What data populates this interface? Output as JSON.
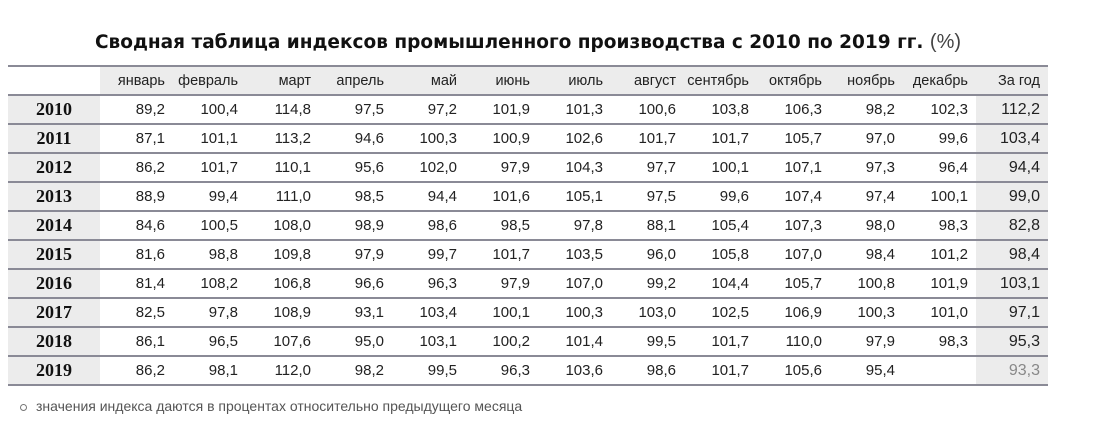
{
  "title": "Сводная таблица индексов промышленного производства с 2010 по 2019 гг.",
  "unit": "(%)",
  "columns": [
    "январь",
    "февраль",
    "март",
    "апрель",
    "май",
    "июнь",
    "июль",
    "август",
    "сентябрь",
    "октябрь",
    "ноябрь",
    "декабрь",
    "За год"
  ],
  "rows": [
    {
      "year": "2010",
      "values": [
        "89,2",
        "100,4",
        "114,8",
        "97,5",
        "97,2",
        "101,9",
        "101,3",
        "100,6",
        "103,8",
        "106,3",
        "98,2",
        "102,3"
      ],
      "total": "112,2"
    },
    {
      "year": "2011",
      "values": [
        "87,1",
        "101,1",
        "113,2",
        "94,6",
        "100,3",
        "100,9",
        "102,6",
        "101,7",
        "101,7",
        "105,7",
        "97,0",
        "99,6"
      ],
      "total": "103,4"
    },
    {
      "year": "2012",
      "values": [
        "86,2",
        "101,7",
        "110,1",
        "95,6",
        "102,0",
        "97,9",
        "104,3",
        "97,7",
        "100,1",
        "107,1",
        "97,3",
        "96,4"
      ],
      "total": "94,4"
    },
    {
      "year": "2013",
      "values": [
        "88,9",
        "99,4",
        "111,0",
        "98,5",
        "94,4",
        "101,6",
        "105,1",
        "97,5",
        "99,6",
        "107,4",
        "97,4",
        "100,1"
      ],
      "total": "99,0"
    },
    {
      "year": "2014",
      "values": [
        "84,6",
        "100,5",
        "108,0",
        "98,9",
        "98,6",
        "98,5",
        "97,8",
        "88,1",
        "105,4",
        "107,3",
        "98,0",
        "98,3"
      ],
      "total": "82,8"
    },
    {
      "year": "2015",
      "values": [
        "81,6",
        "98,8",
        "109,8",
        "97,9",
        "99,7",
        "101,7",
        "103,5",
        "96,0",
        "105,8",
        "107,0",
        "98,4",
        "101,2"
      ],
      "total": "98,4"
    },
    {
      "year": "2016",
      "values": [
        "81,4",
        "108,2",
        "106,8",
        "96,6",
        "96,3",
        "97,9",
        "107,0",
        "99,2",
        "104,4",
        "105,7",
        "100,8",
        "101,9"
      ],
      "total": "103,1"
    },
    {
      "year": "2017",
      "values": [
        "82,5",
        "97,8",
        "108,9",
        "93,1",
        "103,4",
        "100,1",
        "100,3",
        "103,0",
        "102,5",
        "106,9",
        "100,3",
        "101,0"
      ],
      "total": "97,1"
    },
    {
      "year": "2018",
      "values": [
        "86,1",
        "96,5",
        "107,6",
        "95,0",
        "103,1",
        "100,2",
        "101,4",
        "99,5",
        "101,7",
        "110,0",
        "97,9",
        "98,3"
      ],
      "total": "95,3"
    },
    {
      "year": "2019",
      "values": [
        "86,2",
        "98,1",
        "112,0",
        "98,2",
        "99,5",
        "96,3",
        "103,6",
        "98,6",
        "101,7",
        "105,6",
        "95,4",
        ""
      ],
      "total": "93,3",
      "partial": true
    }
  ],
  "footnote": "значения индекса даются в процентах относительно предыдущего месяца"
}
